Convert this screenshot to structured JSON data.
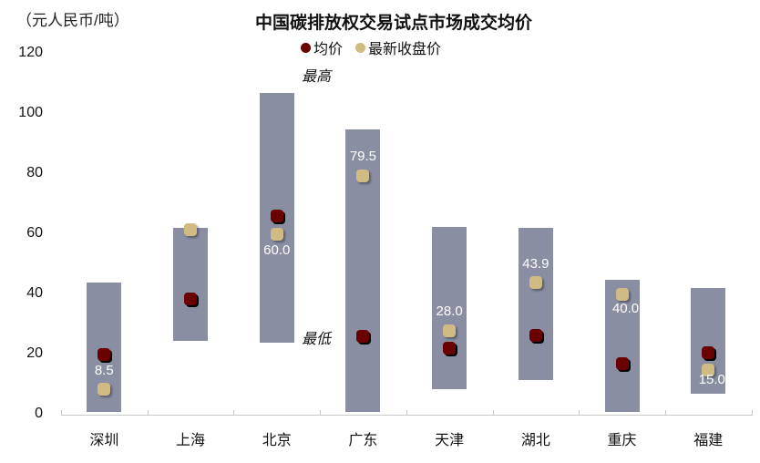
{
  "header": {
    "unit": "（元人民币/吨）",
    "title": "中国碳排放权交易试点市场成交均价"
  },
  "legend": [
    {
      "label": "均价",
      "color": "#6b0000"
    },
    {
      "label": "最新收盘价",
      "color": "#d1bb85"
    }
  ],
  "annotations": {
    "high": "最高",
    "low": "最低"
  },
  "chart_data": {
    "type": "range-bar-with-markers",
    "title": "中国碳排放权交易试点市场成交均价",
    "ylabel": "（元人民币/吨）",
    "xlabel": "",
    "ylim": [
      0,
      120
    ],
    "yticks": [
      0,
      20,
      40,
      60,
      80,
      100,
      120
    ],
    "grid": false,
    "legend_position": "top-center",
    "categories": [
      "深圳",
      "上海",
      "北京",
      "广东",
      "天津",
      "湖北",
      "重庆",
      "福建"
    ],
    "series": [
      {
        "name": "最高",
        "kind": "range_high",
        "values": [
          44,
          62,
          107,
          95,
          62.5,
          62,
          45,
          42
        ]
      },
      {
        "name": "最低",
        "kind": "range_low",
        "values": [
          1,
          24.5,
          24,
          1,
          8.5,
          11.5,
          1,
          7
        ]
      },
      {
        "name": "均价",
        "kind": "marker",
        "color": "#6b0000",
        "values": [
          20,
          38.5,
          66,
          26,
          22,
          26.5,
          17,
          20.5
        ]
      },
      {
        "name": "最新收盘价",
        "kind": "marker",
        "color": "#d1bb85",
        "values": [
          8.5,
          61.5,
          60.0,
          79.5,
          28.0,
          43.9,
          40.0,
          15.0
        ],
        "data_labels": [
          "8.5",
          "",
          "60.0",
          "79.5",
          "28.0",
          "43.9",
          "40.0",
          "15.0"
        ]
      }
    ],
    "annotations": [
      {
        "text": "最高",
        "near": "北京",
        "position": "above bar top"
      },
      {
        "text": "最低",
        "near": "北京",
        "position": "at bar bottom"
      }
    ],
    "colors": {
      "bar": "#8a8ea2",
      "avg": "#6b0000",
      "close": "#d1bb85"
    }
  }
}
